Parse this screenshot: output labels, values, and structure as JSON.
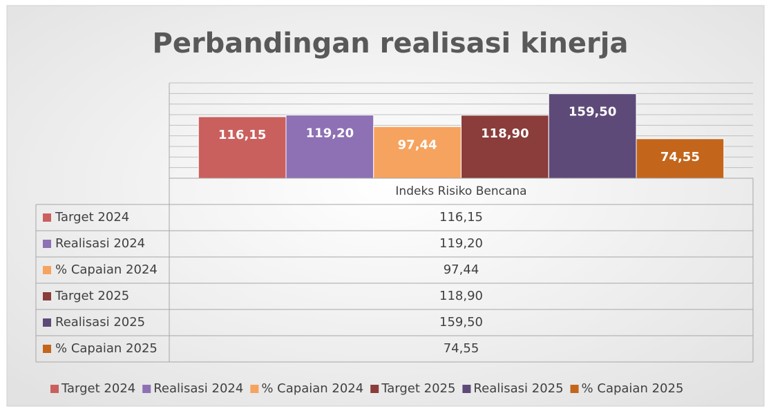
{
  "chart_data": {
    "type": "bar",
    "title": "Perbandingan realisasi kinerja",
    "categories": [
      "Indeks Risiko Bencana"
    ],
    "series": [
      {
        "name": "Target 2024",
        "color": "#c9605e",
        "values": [
          116.15
        ],
        "value_labels": [
          "116,15"
        ]
      },
      {
        "name": "Realisasi 2024",
        "color": "#8e70b5",
        "values": [
          119.2
        ],
        "value_labels": [
          "119,20"
        ]
      },
      {
        "name": "% Capaian 2024",
        "color": "#f6a35f",
        "values": [
          97.44
        ],
        "value_labels": [
          "97,44"
        ]
      },
      {
        "name": "Target 2025",
        "color": "#8a3d3a",
        "values": [
          118.9
        ],
        "value_labels": [
          "118,90"
        ]
      },
      {
        "name": "Realisasi 2025",
        "color": "#5e4a78",
        "values": [
          159.5
        ],
        "value_labels": [
          "159,50"
        ]
      },
      {
        "name": "% Capaian 2025",
        "color": "#c3661c",
        "values": [
          74.55
        ],
        "value_labels": [
          "74,55"
        ]
      }
    ],
    "ylim": [
      0,
      180
    ],
    "yticks": [
      0,
      20,
      40,
      60,
      80,
      100,
      120,
      140,
      160,
      180
    ],
    "grid": true
  }
}
